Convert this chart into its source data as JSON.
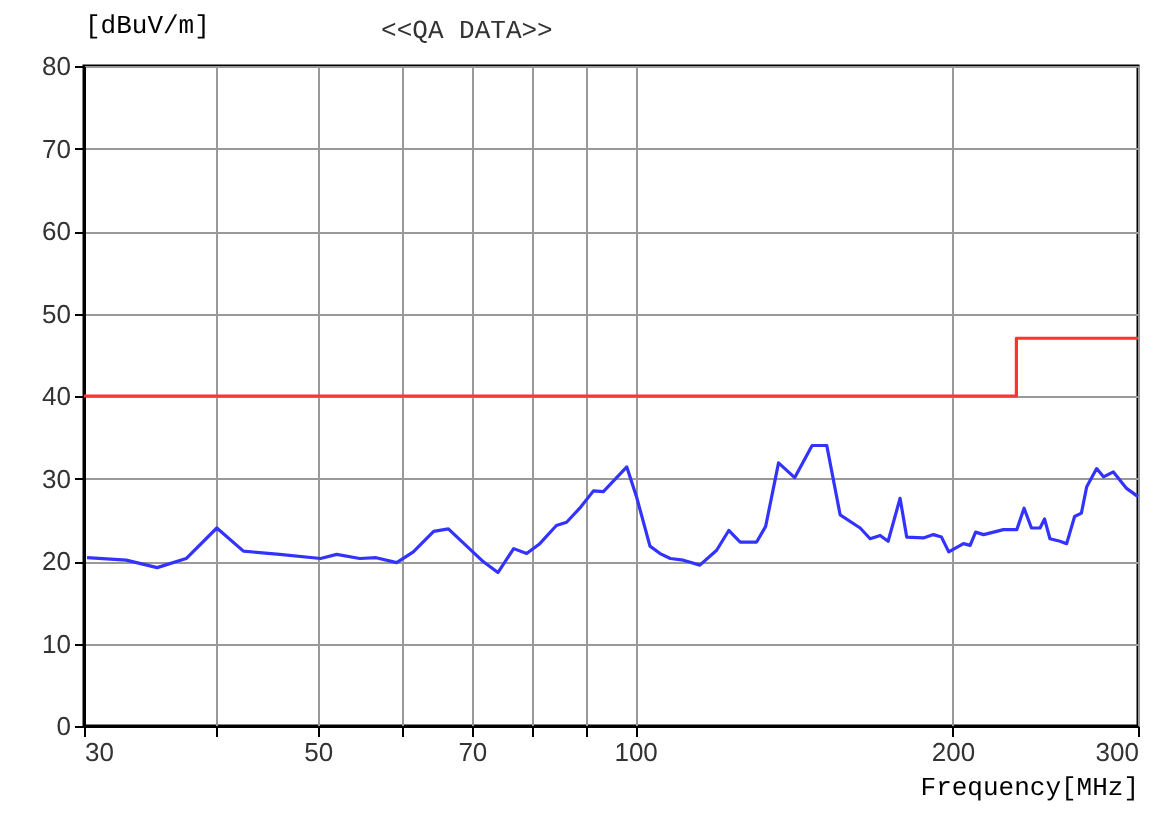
{
  "chart_data": {
    "type": "line",
    "title": "<<QA DATA>>",
    "ylabel": "[dBuV/m]",
    "xlabel": "Frequency[MHz]",
    "log": "x",
    "grid": true,
    "legend": false,
    "marker": "none",
    "line_style": "solid",
    "xlim": [
      30,
      300
    ],
    "xticks": [
      30,
      {
        "value": 40,
        "label": null
      },
      50,
      {
        "value": 60,
        "label": null
      },
      70,
      {
        "value": 80,
        "label": null
      },
      {
        "value": 90,
        "label": null
      },
      100,
      200,
      300
    ],
    "ylim": [
      0,
      80
    ],
    "yticks": [
      0,
      10,
      20,
      30,
      40,
      50,
      60,
      70,
      80
    ],
    "series": [
      {
        "type": "step",
        "color": "#ff3333",
        "x": [
          30,
          230,
          300
        ],
        "values": [
          40,
          47,
          47
        ]
      },
      {
        "type": "line",
        "color": "#3333ff",
        "x": [
          30.2,
          32.9,
          35.2,
          37.5,
          40.1,
          42.5,
          46.0,
          50.3,
          52.1,
          54.8,
          56.8,
          59.4,
          61.6,
          64.4,
          66.5,
          71.8,
          74.1,
          76.7,
          78.9,
          81.2,
          84.2,
          86.1,
          88.6,
          91.3,
          93.3,
          98.2,
          100.3,
          103.3,
          105.6,
          108.0,
          111.1,
          115.2,
          119.5,
          122.7,
          125.8,
          130.4,
          133.0,
          136.8,
          141.7,
          147.2,
          152.0,
          156.5,
          163.5,
          167.1,
          170.8,
          173.8,
          178.4,
          181.0,
          187.7,
          191.9,
          195.3,
          198.4,
          204.9,
          207.9,
          210.4,
          214.1,
          218.8,
          223.6,
          230.2,
          233.9,
          237.7,
          242.2,
          244.6,
          247.5,
          253.0,
          256.7,
          261.2,
          265.1,
          268.2,
          274.1,
          278.2,
          284.3,
          292.6,
          300
        ],
        "values": [
          20.4,
          20.1,
          19.2,
          20.3,
          24.0,
          21.2,
          20.8,
          20.3,
          20.8,
          20.3,
          20.4,
          19.8,
          21.1,
          23.6,
          23.9,
          19.9,
          18.6,
          21.5,
          20.9,
          22.1,
          24.3,
          24.7,
          26.4,
          28.5,
          28.4,
          31.4,
          27.8,
          21.8,
          20.9,
          20.3,
          20.1,
          19.5,
          21.3,
          23.7,
          22.3,
          22.3,
          24.2,
          31.9,
          30.1,
          34.0,
          34.0,
          25.6,
          24.0,
          22.7,
          23.1,
          22.4,
          27.6,
          22.9,
          22.8,
          23.2,
          22.9,
          21.1,
          22.1,
          21.9,
          23.5,
          23.2,
          23.5,
          23.8,
          23.8,
          26.4,
          24.0,
          24.0,
          25.1,
          22.7,
          22.4,
          22.1,
          25.4,
          25.8,
          29.0,
          31.2,
          30.2,
          30.8,
          28.8,
          27.8
        ]
      }
    ]
  }
}
